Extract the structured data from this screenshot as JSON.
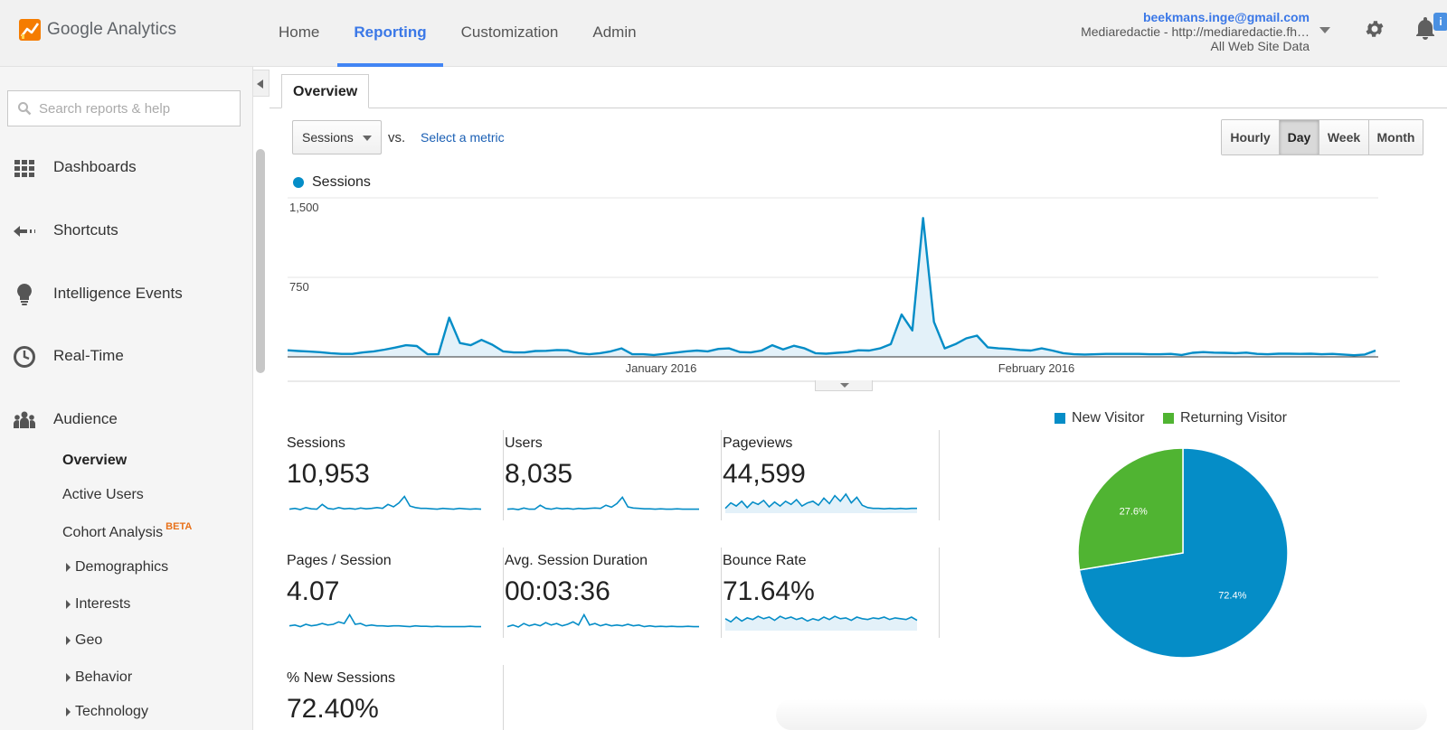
{
  "header": {
    "logo_text": "Google Analytics",
    "nav": [
      {
        "label": "Home",
        "active": false
      },
      {
        "label": "Reporting",
        "active": true
      },
      {
        "label": "Customization",
        "active": false
      },
      {
        "label": "Admin",
        "active": false
      }
    ],
    "account_email": "beekmans.inge@gmail.com",
    "account_property": "Mediaredactie - http://mediaredactie.fh…",
    "account_view": "All Web Site Data",
    "info_badge": "i"
  },
  "sidebar": {
    "search_placeholder": "Search reports & help",
    "items": [
      {
        "label": "Dashboards",
        "icon": "dashboards-icon"
      },
      {
        "label": "Shortcuts",
        "icon": "shortcuts-icon"
      },
      {
        "label": "Intelligence Events",
        "icon": "lightbulb-icon"
      },
      {
        "label": "Real-Time",
        "icon": "clock-icon"
      },
      {
        "label": "Audience",
        "icon": "audience-icon"
      }
    ],
    "audience_sub": [
      {
        "label": "Overview",
        "active": true
      },
      {
        "label": "Active Users",
        "active": false
      },
      {
        "label": "Cohort Analysis",
        "badge": "BETA",
        "active": false
      }
    ],
    "audience_expandable": [
      "Demographics",
      "Interests",
      "Geo",
      "Behavior",
      "Technology"
    ]
  },
  "main": {
    "tab": "Overview",
    "metric_select": "Sessions",
    "vs_label": "vs.",
    "select_metric_link": "Select a metric",
    "periods": [
      {
        "label": "Hourly",
        "active": false
      },
      {
        "label": "Day",
        "active": true
      },
      {
        "label": "Week",
        "active": false
      },
      {
        "label": "Month",
        "active": false
      }
    ],
    "chart_legend": "Sessions"
  },
  "colors": {
    "accent": "#058dc7",
    "new_visitor": "#058dc7",
    "returning_visitor": "#50b432",
    "nav_active": "#3b78e7",
    "beta": "#e8711a"
  },
  "chart_data": [
    {
      "type": "area",
      "title": "Sessions",
      "series": [
        {
          "name": "Sessions",
          "values": [
            62,
            55,
            50,
            44,
            35,
            28,
            28,
            42,
            52,
            68,
            88,
            110,
            102,
            25,
            25,
            370,
            130,
            110,
            160,
            115,
            52,
            42,
            42,
            55,
            57,
            65,
            62,
            35,
            25,
            35,
            52,
            80,
            25,
            25,
            18,
            28,
            40,
            52,
            60,
            52,
            75,
            80,
            45,
            42,
            60,
            110,
            70,
            105,
            80,
            35,
            30,
            38,
            45,
            62,
            60,
            80,
            120,
            400,
            250,
            1310,
            330,
            80,
            120,
            175,
            200,
            90,
            80,
            75,
            65,
            60,
            80,
            60,
            35,
            25,
            22,
            25,
            28,
            28,
            28,
            28,
            25,
            25,
            28,
            18,
            38,
            45,
            40,
            38,
            35,
            40,
            28,
            25,
            30,
            30,
            28,
            30,
            25,
            28,
            22,
            15,
            22,
            60
          ]
        }
      ],
      "x_tick_labels": [
        "January 2016",
        "February 2016"
      ],
      "y_tick_labels": [
        "1,500",
        "750"
      ],
      "ylim": [
        0,
        1500
      ],
      "grid": true
    },
    {
      "type": "pie",
      "title": "",
      "slices": [
        {
          "name": "New Visitor",
          "value": 72.4,
          "label": "72.4%"
        },
        {
          "name": "Returning Visitor",
          "value": 27.6,
          "label": "27.6%"
        }
      ],
      "legend_position": "top"
    }
  ],
  "metrics": [
    {
      "name": "Sessions",
      "value": "10,953",
      "spark": [
        10,
        12,
        9,
        14,
        11,
        10,
        22,
        12,
        10,
        14,
        11,
        12,
        10,
        13,
        11,
        12,
        14,
        12,
        22,
        16,
        26,
        42,
        18,
        14,
        12,
        12,
        11,
        10,
        12,
        11,
        10,
        12,
        11,
        10,
        11,
        10
      ],
      "fill": false
    },
    {
      "name": "Users",
      "value": "8,035",
      "spark": [
        10,
        11,
        9,
        13,
        10,
        10,
        20,
        12,
        10,
        13,
        11,
        12,
        10,
        12,
        11,
        12,
        13,
        12,
        20,
        15,
        24,
        40,
        16,
        13,
        12,
        11,
        11,
        10,
        11,
        10,
        10,
        11,
        10,
        10,
        10,
        10
      ],
      "fill": false
    },
    {
      "name": "Pageviews",
      "value": "44,599",
      "spark": [
        12,
        26,
        18,
        30,
        14,
        28,
        22,
        32,
        16,
        28,
        18,
        30,
        22,
        34,
        18,
        26,
        30,
        20,
        38,
        24,
        44,
        30,
        48,
        26,
        40,
        20,
        14,
        12,
        12,
        11,
        12,
        11,
        12,
        11,
        12,
        12
      ],
      "fill": true
    },
    {
      "name": "Pages / Session",
      "value": "4.07",
      "spark": [
        12,
        14,
        10,
        16,
        12,
        14,
        18,
        14,
        16,
        22,
        18,
        40,
        16,
        18,
        12,
        14,
        12,
        12,
        11,
        12,
        12,
        11,
        10,
        12,
        11,
        11,
        10,
        11,
        10,
        10,
        10,
        10,
        10,
        11,
        10,
        10
      ],
      "fill": false
    },
    {
      "name": "Avg. Session Duration",
      "value": "00:03:36",
      "spark": [
        10,
        14,
        9,
        18,
        12,
        16,
        12,
        20,
        14,
        18,
        12,
        16,
        22,
        14,
        40,
        14,
        18,
        12,
        16,
        12,
        14,
        12,
        16,
        12,
        14,
        10,
        12,
        10,
        11,
        10,
        11,
        10,
        10,
        11,
        10,
        10
      ],
      "fill": false
    },
    {
      "name": "Bounce Rate",
      "value": "71.64%",
      "spark": [
        30,
        22,
        34,
        24,
        32,
        28,
        36,
        30,
        34,
        26,
        36,
        30,
        34,
        28,
        32,
        24,
        30,
        26,
        34,
        28,
        36,
        30,
        32,
        26,
        34,
        30,
        28,
        32,
        30,
        34,
        28,
        32,
        30,
        28,
        34,
        26
      ],
      "fill": true
    },
    {
      "name": "% New Sessions",
      "value": "72.40%",
      "spark": [],
      "fill": false
    }
  ]
}
